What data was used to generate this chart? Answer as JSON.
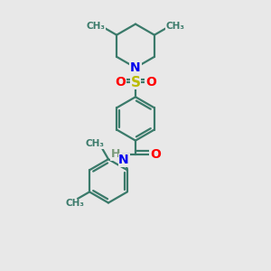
{
  "background_color": "#e8e8e8",
  "bond_color": "#3a7a6a",
  "N_color": "#0000ee",
  "S_color": "#bbbb00",
  "O_color": "#ff0000",
  "H_color": "#7a9a7a",
  "font_size": 10,
  "line_width": 1.6,
  "figsize": [
    3.0,
    3.0
  ],
  "dpi": 100,
  "xlim": [
    0,
    10
  ],
  "ylim": [
    0,
    10
  ]
}
